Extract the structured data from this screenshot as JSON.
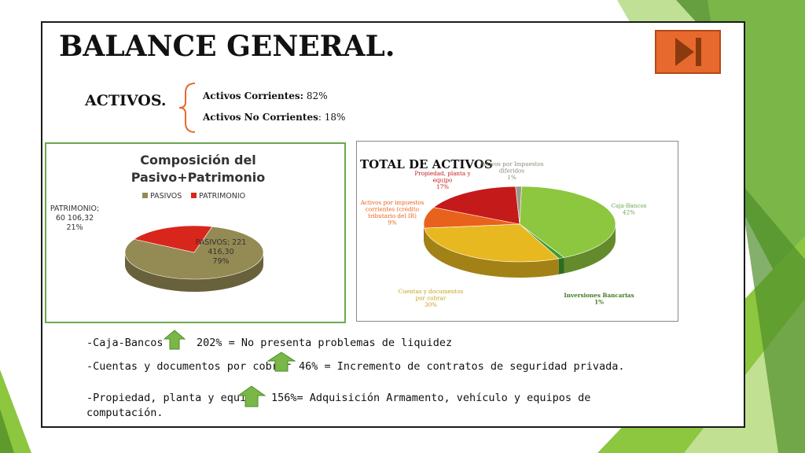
{
  "slide": {
    "title": "BALANCE GENERAL.",
    "activos": {
      "label": "ACTIVOS.",
      "corrientes_label": "Activos Corrientes:",
      "corrientes_value": " 82%",
      "no_corrientes_label": "Activos No Corrientes",
      "no_corrientes_value": ": 18%"
    },
    "notes": [
      {
        "item": "-Caja-Bancos",
        "text": "202% = No presenta problemas de liquidez"
      },
      {
        "item": "-Cuentas y documentos por cobrar",
        "text": "46% = Incremento de contratos de seguridad privada."
      },
      {
        "item": "-Propiedad, planta y equipo",
        "text": "156%= Adquisición Armamento, vehículo y equipos de",
        "text2": "computación."
      }
    ],
    "arrow_color": "#7ab648",
    "nav_button_color": "#e8692d"
  },
  "chart_data": [
    {
      "type": "pie",
      "title": "Composición del Pasivo+Patrimonio",
      "legend_position": "top",
      "legend": [
        "PASIVOS",
        "PATRIMONIO"
      ],
      "slices": [
        {
          "name": "PASIVOS",
          "value_text": "221 416,30",
          "value": 221416.3,
          "percent": 79,
          "label_lines": [
            "PASIVOS;  221",
            "416,30",
            "79%"
          ],
          "color": "#948a54"
        },
        {
          "name": "PATRIMONIO",
          "value_text": "60 106,32",
          "value": 60106.32,
          "percent": 21,
          "label_lines": [
            "PATRIMONIO;",
            "60 106,32",
            "21%"
          ],
          "color": "#d9261c"
        }
      ]
    },
    {
      "type": "pie",
      "title": "TOTAL DE ACTIVOS",
      "slices": [
        {
          "name": "Caja-Bancos",
          "percent": 42,
          "label_lines": [
            "Caja-Bancos",
            "42%"
          ],
          "color": "#8dc63f"
        },
        {
          "name": "Inversiones Bancarias",
          "percent": 1,
          "label_lines": [
            "Inversiones Bancarias",
            "1%"
          ],
          "color": "#3f9a2f"
        },
        {
          "name": "Cuentas y documentos por cobrar",
          "percent": 30,
          "label_lines": [
            "Cuentas y documentos",
            "por cobrar",
            "30%"
          ],
          "color": "#e8b820"
        },
        {
          "name": "Activos por impuestos corrientes (crédito tributario del IR)",
          "percent": 9,
          "label_lines": [
            "Activos por impuestos",
            "corrientes (crédito",
            "tributario del IR)",
            "9%"
          ],
          "color": "#e8621c"
        },
        {
          "name": "Propiedad, planta y equipo",
          "percent": 17,
          "label_lines": [
            "Propiedad, planta y",
            "equipo",
            "17%"
          ],
          "color": "#c41a1a"
        },
        {
          "name": "Activos por Impuestos diferidos",
          "percent": 1,
          "label_lines": [
            "Activos por Impuestos",
            "diferidos",
            "1%"
          ],
          "color": "#9a9a8a"
        }
      ]
    }
  ]
}
